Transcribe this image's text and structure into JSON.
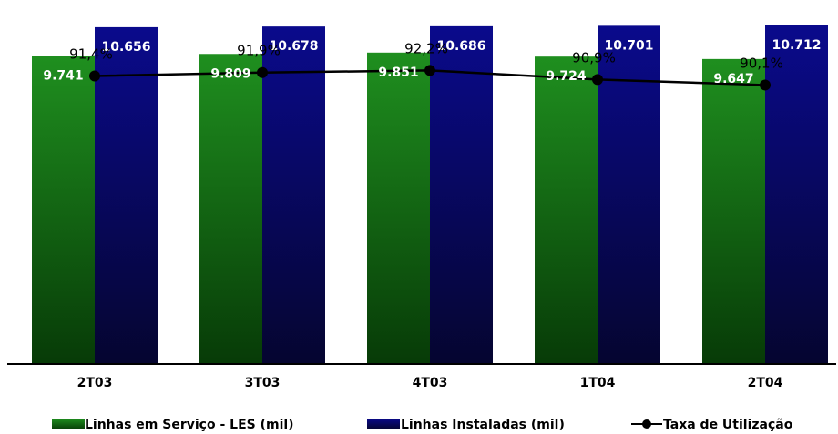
{
  "chart_data": {
    "type": "bar",
    "categories": [
      "2T03",
      "3T03",
      "4T03",
      "1T04",
      "2T04"
    ],
    "series": [
      {
        "name": "Linhas em Serviço - LES (mil)",
        "values": [
          9741,
          9809,
          9851,
          9724,
          9647
        ],
        "labels": [
          "9.741",
          "9.809",
          "9.851",
          "9.724",
          "9.647"
        ],
        "color_top": "#1f8f1f",
        "color_bottom": "#073b07"
      },
      {
        "name": "Linhas Instaladas (mil)",
        "values": [
          10656,
          10678,
          10686,
          10701,
          10712
        ],
        "labels": [
          "10.656",
          "10.678",
          "10.686",
          "10.701",
          "10.712"
        ],
        "color_top": "#0a0a8c",
        "color_bottom": "#050530"
      }
    ],
    "line_series": {
      "name": "Taxa de Utilização",
      "values": [
        91.4,
        91.9,
        92.2,
        90.9,
        90.1
      ],
      "labels": [
        "91,4%",
        "91,9%",
        "92,2%",
        "90,9%",
        "90,1%"
      ],
      "color": "#000000"
    },
    "ylim_bars": [
      0,
      11000
    ],
    "ylim_line": [
      50,
      100
    ],
    "grid": false,
    "legend_position": "bottom"
  }
}
